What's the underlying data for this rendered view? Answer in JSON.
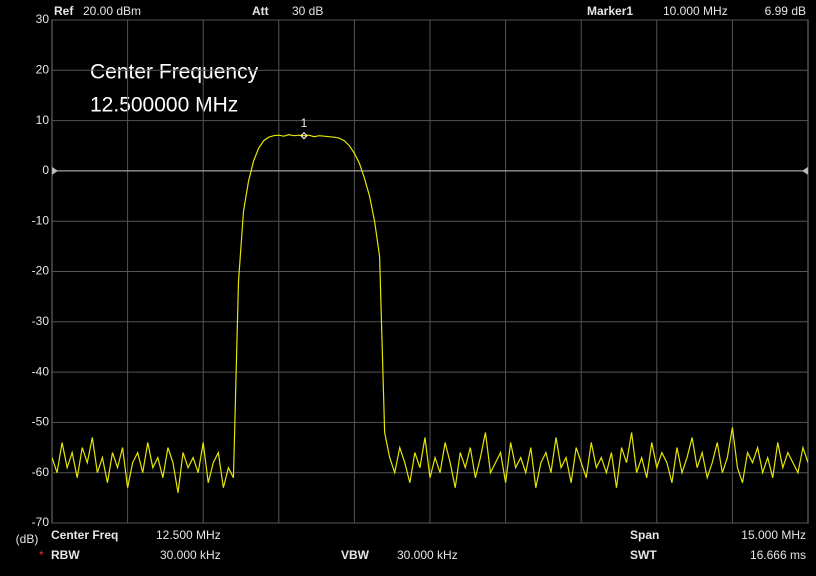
{
  "header": {
    "ref_label": "Ref",
    "ref_value": "20.00 dBm",
    "att_label": "Att",
    "att_value": "30 dB",
    "marker_label": "Marker1",
    "marker_freq": "10.000 MHz",
    "marker_level": "6.99 dB"
  },
  "footer": {
    "center_label": "Center Freq",
    "center_value": "12.500 MHz",
    "span_label": "Span",
    "span_value": "15.000 MHz",
    "rbw_flag": "*",
    "rbw_label": "RBW",
    "rbw_value": "30.000 kHz",
    "vbw_label": "VBW",
    "vbw_value": "30.000 kHz",
    "swt_label": "SWT",
    "swt_value": "16.666 ms"
  },
  "chart_data": {
    "type": "line",
    "annotation": [
      "Center Frequency",
      "12.500000 MHz"
    ],
    "ylabel": "(dB)",
    "x": [
      5.0,
      5.1,
      5.2,
      5.3,
      5.4,
      5.5,
      5.6,
      5.7,
      5.8,
      5.9,
      6.0,
      6.1,
      6.2,
      6.3,
      6.4,
      6.5,
      6.6,
      6.7,
      6.8,
      6.9,
      7.0,
      7.1,
      7.2,
      7.3,
      7.4,
      7.5,
      7.6,
      7.7,
      7.8,
      7.9,
      8.0,
      8.1,
      8.2,
      8.3,
      8.4,
      8.5,
      8.6,
      8.7,
      8.8,
      8.9,
      9.0,
      9.1,
      9.2,
      9.3,
      9.4,
      9.5,
      9.6,
      9.7,
      9.8,
      9.9,
      10.0,
      10.1,
      10.2,
      10.3,
      10.4,
      10.5,
      10.6,
      10.7,
      10.8,
      10.9,
      11.0,
      11.1,
      11.2,
      11.3,
      11.4,
      11.5,
      11.6,
      11.7,
      11.8,
      11.9,
      12.0,
      12.1,
      12.2,
      12.3,
      12.4,
      12.5,
      12.6,
      12.7,
      12.8,
      12.9,
      13.0,
      13.1,
      13.2,
      13.3,
      13.4,
      13.5,
      13.6,
      13.7,
      13.8,
      13.9,
      14.0,
      14.1,
      14.2,
      14.3,
      14.4,
      14.5,
      14.6,
      14.7,
      14.8,
      14.9,
      15.0,
      15.1,
      15.2,
      15.3,
      15.4,
      15.5,
      15.6,
      15.7,
      15.8,
      15.9,
      16.0,
      16.1,
      16.2,
      16.3,
      16.4,
      16.5,
      16.6,
      16.7,
      16.8,
      16.9,
      17.0,
      17.1,
      17.2,
      17.3,
      17.4,
      17.5,
      17.6,
      17.7,
      17.8,
      17.9,
      18.0,
      18.1,
      18.2,
      18.3,
      18.4,
      18.5,
      18.6,
      18.7,
      18.8,
      18.9,
      19.0,
      19.1,
      19.2,
      19.3,
      19.4,
      19.5,
      19.6,
      19.7,
      19.8,
      19.9,
      20.0
    ],
    "values": [
      -57,
      -60,
      -54,
      -59,
      -56,
      -61,
      -55,
      -58,
      -53,
      -60,
      -57,
      -62,
      -56,
      -59,
      -55,
      -63,
      -58,
      -56,
      -60,
      -54,
      -59,
      -57,
      -61,
      -55,
      -58,
      -64,
      -56,
      -59,
      -57,
      -60,
      -54,
      -62,
      -58,
      -56,
      -63,
      -59,
      -61,
      -22,
      -8,
      -2,
      2,
      4.5,
      6,
      6.7,
      7,
      7.1,
      6.9,
      7.2,
      7,
      7.1,
      6.99,
      7.1,
      6.8,
      7,
      6.9,
      6.8,
      6.7,
      6.5,
      6,
      5,
      3.5,
      1.5,
      -1.5,
      -5,
      -10,
      -17,
      -52,
      -57,
      -60,
      -55,
      -58,
      -62,
      -56,
      -59,
      -53,
      -61,
      -57,
      -60,
      -54,
      -58,
      -63,
      -56,
      -59,
      -55,
      -61,
      -57,
      -52,
      -60,
      -58,
      -56,
      -62,
      -54,
      -59,
      -57,
      -60,
      -55,
      -63,
      -58,
      -56,
      -60,
      -53,
      -59,
      -57,
      -62,
      -55,
      -58,
      -61,
      -54,
      -59,
      -57,
      -60,
      -56,
      -63,
      -55,
      -58,
      -52,
      -60,
      -57,
      -61,
      -54,
      -59,
      -56,
      -58,
      -62,
      -55,
      -60,
      -57,
      -53,
      -59,
      -56,
      -61,
      -58,
      -54,
      -60,
      -57,
      -51,
      -59,
      -62,
      -56,
      -58,
      -55,
      -60,
      -57,
      -61,
      -54,
      -59,
      -56,
      -58,
      -60,
      -55,
      -58
    ],
    "color": "#e6e600",
    "xlim": [
      5,
      20
    ],
    "ylim": [
      -70,
      30
    ],
    "yticks": [
      30,
      20,
      10,
      0,
      -10,
      -20,
      -30,
      -40,
      -50,
      -60,
      -70
    ],
    "reference_line": 0,
    "marker": {
      "label": "1",
      "x": 10.0,
      "value": 6.99
    },
    "grid": true
  }
}
